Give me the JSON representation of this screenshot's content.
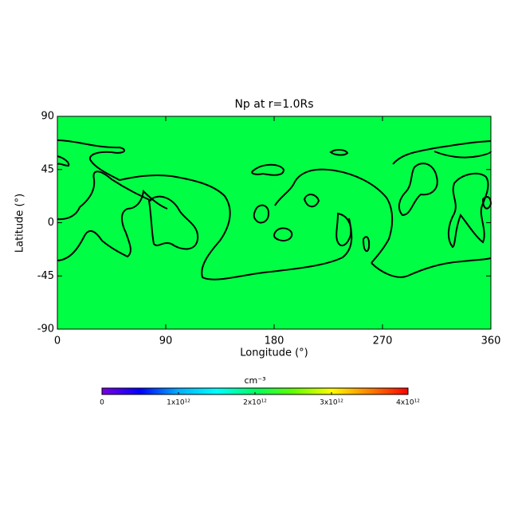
{
  "chart_data": {
    "type": "contour",
    "title": "Np at r=1.0Rs",
    "xlabel": "Longitude (°)",
    "ylabel": "Latitude (°)",
    "xlim": [
      0,
      360
    ],
    "xticks": [
      0,
      90,
      180,
      270,
      360
    ],
    "ylim": [
      -90,
      90
    ],
    "yticks": [
      -90,
      -45,
      0,
      45,
      90
    ],
    "field_color": "#00ff44",
    "colorbar": {
      "label": "cm⁻³",
      "lim": [
        0,
        4000000000000
      ],
      "ticks": [
        0,
        {
          "value": 1000000000000,
          "label": "1x10¹²"
        },
        {
          "value": 2000000000000,
          "label": "2x10¹²"
        },
        {
          "value": 3000000000000,
          "label": "3x10¹²"
        },
        {
          "value": 4000000000000,
          "label": "4x10¹²"
        }
      ],
      "colormap": [
        "#7a00e0",
        "#0000ff",
        "#00b0ff",
        "#00ffff",
        "#00ff60",
        "#60ff00",
        "#ffff00",
        "#ff8000",
        "#ff0000"
      ]
    }
  }
}
